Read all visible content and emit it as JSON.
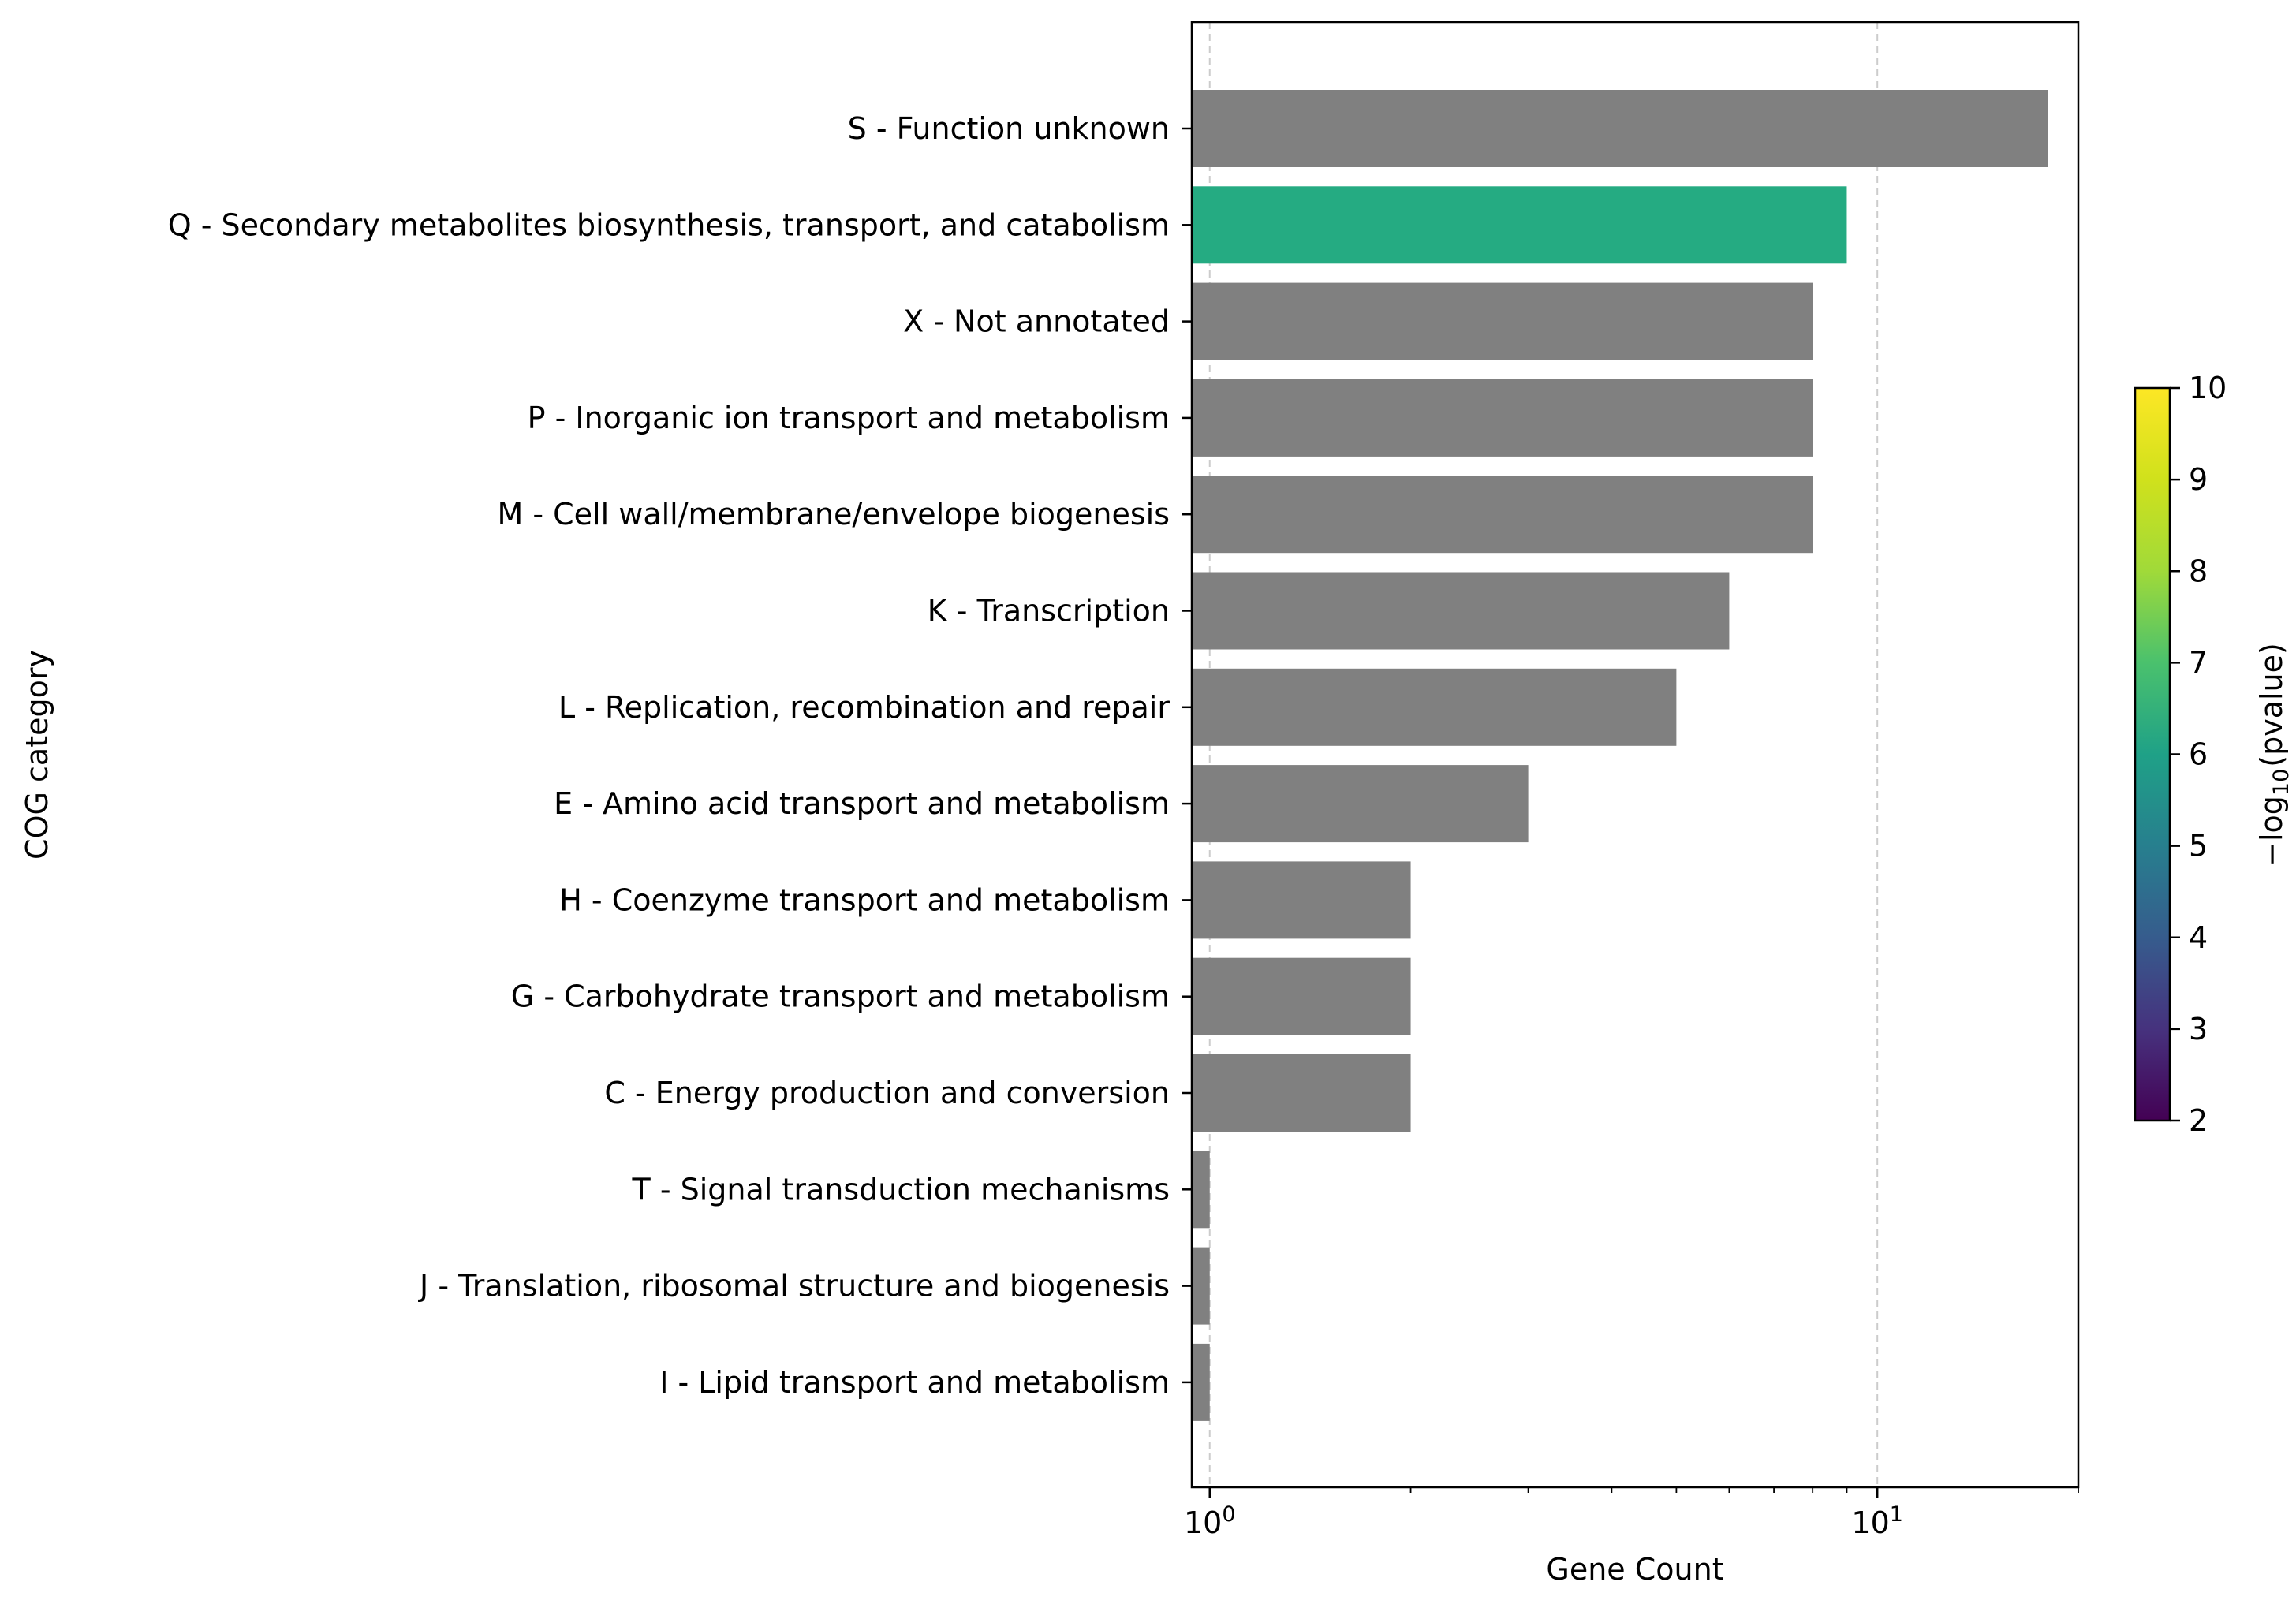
{
  "chart_data": {
    "type": "bar",
    "orientation": "horizontal",
    "title": "",
    "xlabel": "Gene Count",
    "ylabel": "COG category",
    "x_scale": "log",
    "xlim": [
      0.94,
      20
    ],
    "x_major_ticks": [
      {
        "value": 1,
        "base": "10",
        "exp": "0"
      },
      {
        "value": 10,
        "base": "10",
        "exp": "1"
      }
    ],
    "grid": "vertical dashed at major ticks",
    "categories": [
      "S - Function unknown",
      "Q - Secondary metabolites biosynthesis, transport, and catabolism",
      "X - Not annotated",
      "P - Inorganic ion transport and metabolism",
      "M - Cell wall/membrane/envelope biogenesis",
      "K - Transcription",
      "L - Replication, recombination and repair",
      "E - Amino acid transport and metabolism",
      "H - Coenzyme transport and metabolism",
      "G - Carbohydrate transport and metabolism",
      "C - Energy production and conversion",
      "T - Signal transduction mechanisms",
      "J - Translation, ribosomal structure and biogenesis",
      "I - Lipid transport and metabolism"
    ],
    "values": [
      18,
      9,
      8,
      8,
      8,
      6,
      5,
      3,
      2,
      2,
      2,
      1,
      1,
      1
    ],
    "bar_colors": [
      "#808080",
      "#25ab82",
      "#808080",
      "#808080",
      "#808080",
      "#808080",
      "#808080",
      "#808080",
      "#808080",
      "#808080",
      "#808080",
      "#808080",
      "#808080",
      "#808080"
    ],
    "colorbar": {
      "colormap": "viridis",
      "label_prefix": "−log",
      "label_sub": "10",
      "label_suffix": "(pvalue)",
      "range": [
        2,
        10
      ],
      "ticks": [
        "2",
        "3",
        "4",
        "5",
        "6",
        "7",
        "8",
        "9",
        "10"
      ]
    }
  }
}
